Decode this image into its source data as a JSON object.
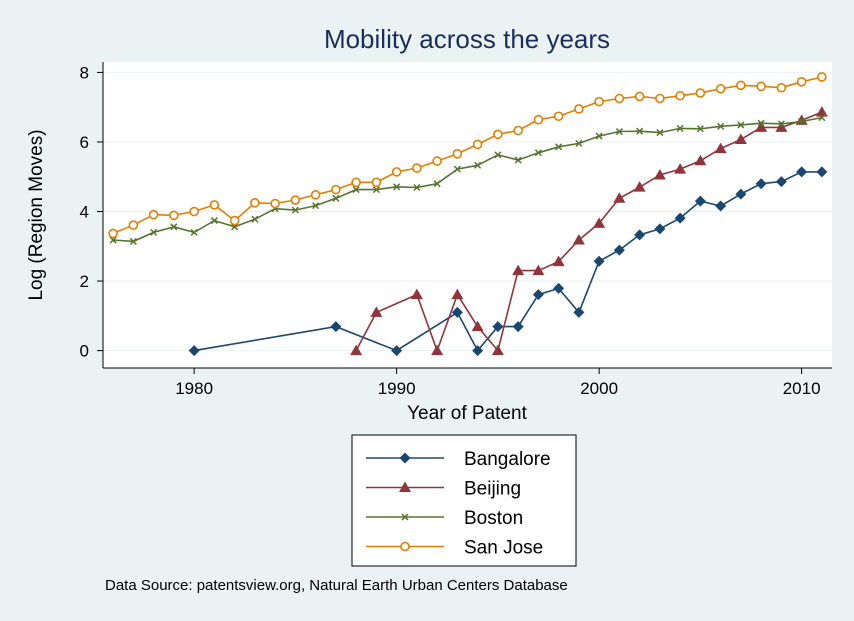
{
  "chart_data": {
    "type": "line",
    "title": "Mobility across the years",
    "xlabel": "Year of Patent",
    "ylabel": "Log (Region Moves)",
    "xlim": [
      1975.5,
      2011.5
    ],
    "ylim": [
      -0.5,
      8.3
    ],
    "x_ticks": [
      1980,
      1990,
      2000,
      2010
    ],
    "y_ticks": [
      0,
      2,
      4,
      6,
      8
    ],
    "grid": true,
    "legend_position": "bottom",
    "note": "Data Source: patentsview.org, Natural Earth Urban Centers Database",
    "series": [
      {
        "name": "Bangalore",
        "color": "#1a476f",
        "marker": "diamond",
        "points": [
          [
            1980,
            0
          ],
          [
            1987,
            0.69
          ],
          [
            1990,
            0
          ],
          [
            1993,
            1.1
          ],
          [
            1994,
            0
          ],
          [
            1995,
            0.69
          ],
          [
            1996,
            0.69
          ],
          [
            1997,
            1.61
          ],
          [
            1998,
            1.79
          ],
          [
            1999,
            1.1
          ],
          [
            2000,
            2.57
          ],
          [
            2001,
            2.89
          ],
          [
            2002,
            3.33
          ],
          [
            2003,
            3.5
          ],
          [
            2004,
            3.81
          ],
          [
            2005,
            4.3
          ],
          [
            2006,
            4.16
          ],
          [
            2007,
            4.5
          ],
          [
            2008,
            4.8
          ],
          [
            2009,
            4.86
          ],
          [
            2010,
            5.14
          ],
          [
            2011,
            5.14
          ]
        ]
      },
      {
        "name": "Beijing",
        "color": "#90353b",
        "marker": "triangle",
        "points": [
          [
            1988,
            0
          ],
          [
            1989,
            1.1
          ],
          [
            1991,
            1.61
          ],
          [
            1992,
            0
          ],
          [
            1993,
            1.61
          ],
          [
            1994,
            0.69
          ],
          [
            1995,
            0
          ],
          [
            1996,
            2.3
          ],
          [
            1997,
            2.3
          ],
          [
            1998,
            2.56
          ],
          [
            1999,
            3.18
          ],
          [
            2000,
            3.66
          ],
          [
            2001,
            4.38
          ],
          [
            2002,
            4.7
          ],
          [
            2003,
            5.05
          ],
          [
            2004,
            5.22
          ],
          [
            2005,
            5.46
          ],
          [
            2006,
            5.81
          ],
          [
            2007,
            6.07
          ],
          [
            2008,
            6.42
          ],
          [
            2009,
            6.42
          ],
          [
            2010,
            6.62
          ],
          [
            2011,
            6.86
          ]
        ]
      },
      {
        "name": "Boston",
        "color": "#55752f",
        "marker": "x",
        "points": [
          [
            1976,
            3.18
          ],
          [
            1977,
            3.14
          ],
          [
            1978,
            3.4
          ],
          [
            1979,
            3.56
          ],
          [
            1980,
            3.4
          ],
          [
            1981,
            3.74
          ],
          [
            1982,
            3.56
          ],
          [
            1983,
            3.78
          ],
          [
            1984,
            4.08
          ],
          [
            1985,
            4.04
          ],
          [
            1986,
            4.17
          ],
          [
            1987,
            4.38
          ],
          [
            1988,
            4.63
          ],
          [
            1989,
            4.63
          ],
          [
            1990,
            4.71
          ],
          [
            1991,
            4.69
          ],
          [
            1992,
            4.8
          ],
          [
            1993,
            5.22
          ],
          [
            1994,
            5.33
          ],
          [
            1995,
            5.63
          ],
          [
            1996,
            5.48
          ],
          [
            1997,
            5.69
          ],
          [
            1998,
            5.86
          ],
          [
            1999,
            5.96
          ],
          [
            2000,
            6.17
          ],
          [
            2001,
            6.3
          ],
          [
            2002,
            6.31
          ],
          [
            2003,
            6.27
          ],
          [
            2004,
            6.39
          ],
          [
            2005,
            6.38
          ],
          [
            2006,
            6.45
          ],
          [
            2007,
            6.49
          ],
          [
            2008,
            6.54
          ],
          [
            2009,
            6.52
          ],
          [
            2010,
            6.59
          ],
          [
            2011,
            6.7
          ]
        ]
      },
      {
        "name": "San Jose",
        "color": "#e37e00",
        "marker": "circle",
        "points": [
          [
            1976,
            3.37
          ],
          [
            1977,
            3.61
          ],
          [
            1978,
            3.91
          ],
          [
            1979,
            3.89
          ],
          [
            1980,
            4.0
          ],
          [
            1981,
            4.19
          ],
          [
            1982,
            3.74
          ],
          [
            1983,
            4.25
          ],
          [
            1984,
            4.23
          ],
          [
            1985,
            4.33
          ],
          [
            1986,
            4.48
          ],
          [
            1987,
            4.63
          ],
          [
            1988,
            4.84
          ],
          [
            1989,
            4.84
          ],
          [
            1990,
            5.14
          ],
          [
            1991,
            5.25
          ],
          [
            1992,
            5.45
          ],
          [
            1993,
            5.66
          ],
          [
            1994,
            5.93
          ],
          [
            1995,
            6.22
          ],
          [
            1996,
            6.33
          ],
          [
            1997,
            6.64
          ],
          [
            1998,
            6.74
          ],
          [
            1999,
            6.95
          ],
          [
            2000,
            7.16
          ],
          [
            2001,
            7.25
          ],
          [
            2002,
            7.31
          ],
          [
            2003,
            7.25
          ],
          [
            2004,
            7.33
          ],
          [
            2005,
            7.41
          ],
          [
            2006,
            7.53
          ],
          [
            2007,
            7.63
          ],
          [
            2008,
            7.6
          ],
          [
            2009,
            7.56
          ],
          [
            2010,
            7.73
          ],
          [
            2011,
            7.87
          ]
        ]
      }
    ]
  }
}
